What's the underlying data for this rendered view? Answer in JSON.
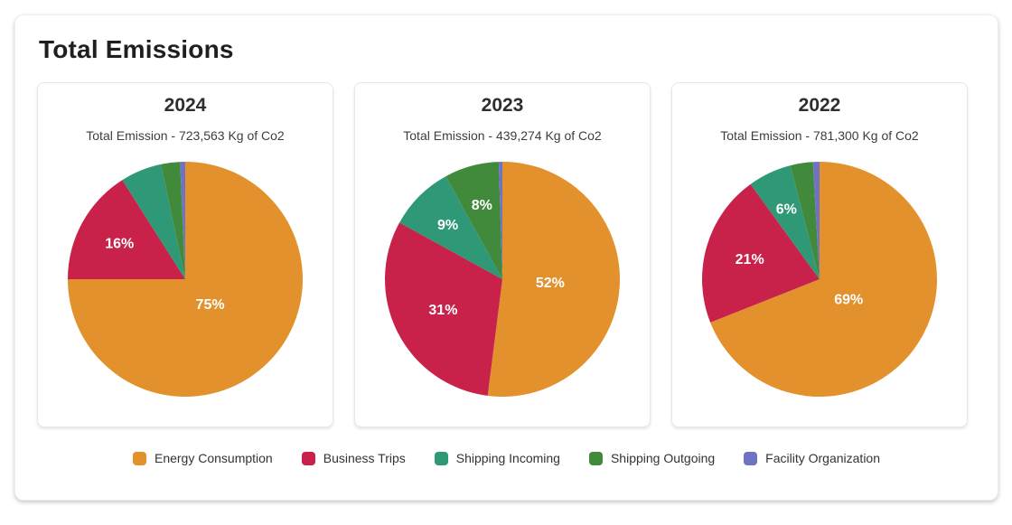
{
  "header": {
    "title": "Total Emissions"
  },
  "chart_data": [
    {
      "type": "pie",
      "title": "2024",
      "subtitle": "Total Emission - 723,563 Kg of Co2",
      "categories": [
        "Energy Consumption",
        "Business Trips",
        "Shipping Incoming",
        "Shipping Outgoing",
        "Facility Organization"
      ],
      "values": [
        75,
        16,
        5.7,
        2.6,
        0.7
      ],
      "slice_labels": [
        "75%",
        "16%",
        null,
        null,
        null
      ],
      "start_angle": "12-oclock",
      "direction": "clockwise",
      "legend_position": "shared-bottom"
    },
    {
      "type": "pie",
      "title": "2023",
      "subtitle": "Total Emission - 439,274 Kg of Co2",
      "categories": [
        "Energy Consumption",
        "Business Trips",
        "Shipping Incoming",
        "Shipping Outgoing",
        "Facility Organization"
      ],
      "values": [
        52,
        31,
        9,
        7.5,
        0.5
      ],
      "slice_labels": [
        "52%",
        "31%",
        "9%",
        "8%",
        null
      ],
      "start_angle": "12-oclock",
      "direction": "clockwise",
      "legend_position": "shared-bottom"
    },
    {
      "type": "pie",
      "title": "2022",
      "subtitle": "Total Emission - 781,300 Kg of Co2",
      "categories": [
        "Energy Consumption",
        "Business Trips",
        "Shipping Incoming",
        "Shipping Outgoing",
        "Facility Organization"
      ],
      "values": [
        69,
        21,
        6,
        3.1,
        0.9
      ],
      "slice_labels": [
        "69%",
        "21%",
        "6%",
        null,
        null
      ],
      "start_angle": "12-oclock",
      "direction": "clockwise",
      "legend_position": "shared-bottom"
    }
  ],
  "legend": {
    "items": [
      {
        "label": "Energy Consumption",
        "color": "#E2912C",
        "key": "energy-consumption"
      },
      {
        "label": "Business Trips",
        "color": "#C8224A",
        "key": "business-trips"
      },
      {
        "label": "Shipping Incoming",
        "color": "#2F9876",
        "key": "shipping-incoming"
      },
      {
        "label": "Shipping Outgoing",
        "color": "#418A3C",
        "key": "shipping-outgoing"
      },
      {
        "label": "Facility Organization",
        "color": "#7072C4",
        "key": "facility-organization"
      }
    ]
  },
  "style": {
    "label_text_color": "#ffffff"
  }
}
